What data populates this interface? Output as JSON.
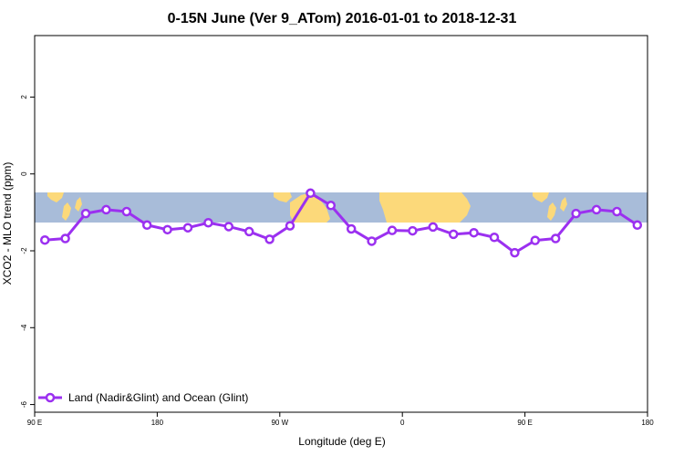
{
  "chart_data": {
    "type": "line",
    "title": "0-15N June (Ver 9_ATom)   2016-01-01 to 2018-12-31",
    "xlabel": "Longitude (deg E)",
    "ylabel": "XCO2 - MLO trend (ppm)",
    "x_ticks": [
      {
        "value": 90,
        "label": "90 E"
      },
      {
        "value": 180,
        "label": "180"
      },
      {
        "value": 270,
        "label": "90 W"
      },
      {
        "value": 360,
        "label": "0"
      },
      {
        "value": 450,
        "label": "90 E"
      },
      {
        "value": 540,
        "label": "180"
      }
    ],
    "y_ticks": [
      {
        "value": 2,
        "label": "2"
      },
      {
        "value": 0,
        "label": "0"
      },
      {
        "value": -2,
        "label": "-2"
      },
      {
        "value": -4,
        "label": "-4"
      },
      {
        "value": -6,
        "label": "-6"
      }
    ],
    "xlim": [
      90,
      540
    ],
    "ylim": [
      -6.2,
      3.6
    ],
    "map_band_ylim": [
      -1.4,
      -0.6
    ],
    "series": [
      {
        "name": "Land (Nadir&Glint) and Ocean (Glint)",
        "color": "#9b30f0",
        "x": [
          97.5,
          112.5,
          127.5,
          142.5,
          157.5,
          172.5,
          187.5,
          202.5,
          217.5,
          232.5,
          247.5,
          262.5,
          277.5,
          292.5,
          307.5,
          322.5,
          337.5,
          352.5,
          367.5,
          382.5,
          397.5,
          412.5,
          427.5,
          442.5,
          457.5,
          472.5,
          487.5,
          502.5,
          517.5,
          532.5
        ],
        "y": [
          -1.72,
          -1.68,
          -1.03,
          -0.93,
          -0.98,
          -1.33,
          -1.45,
          -1.4,
          -1.27,
          -1.37,
          -1.5,
          -1.7,
          -1.35,
          -0.5,
          -0.82,
          -1.43,
          -1.75,
          -1.47,
          -1.48,
          -1.38,
          -1.57,
          -1.53,
          -1.65,
          -2.05,
          -1.73,
          -1.68,
          -1.03,
          -0.93,
          -0.98,
          -1.33
        ]
      }
    ],
    "legend_position": "bottom-left",
    "colors": {
      "line": "#9b30f0",
      "ocean": "#a8bcd9",
      "land": "#fcd97a"
    }
  }
}
